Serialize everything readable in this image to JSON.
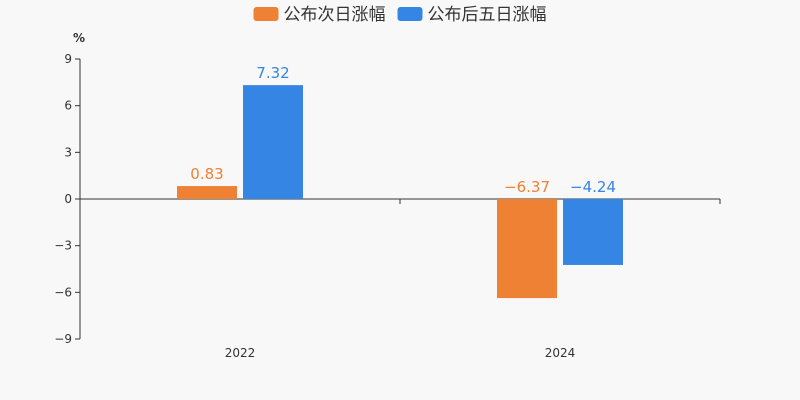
{
  "chart_data": {
    "type": "bar",
    "categories": [
      "2022",
      "2024"
    ],
    "series": [
      {
        "name": "公布次日涨幅",
        "color": "#ee8133",
        "values": [
          0.83,
          -6.37
        ],
        "labels": [
          "0.83",
          "−6.37"
        ]
      },
      {
        "name": "公布后五日涨幅",
        "color": "#3585e5",
        "values": [
          7.32,
          -4.24
        ],
        "labels": [
          "7.32",
          "−4.24"
        ]
      }
    ],
    "y_unit": "%",
    "ylim": [
      -9,
      9
    ],
    "yticks": [
      9,
      6,
      3,
      0,
      -3,
      -6,
      -9
    ],
    "ytick_labels": [
      "9",
      "6",
      "3",
      "0",
      "−3",
      "−6",
      "−9"
    ],
    "legend_position": "top-center",
    "grid": false
  }
}
